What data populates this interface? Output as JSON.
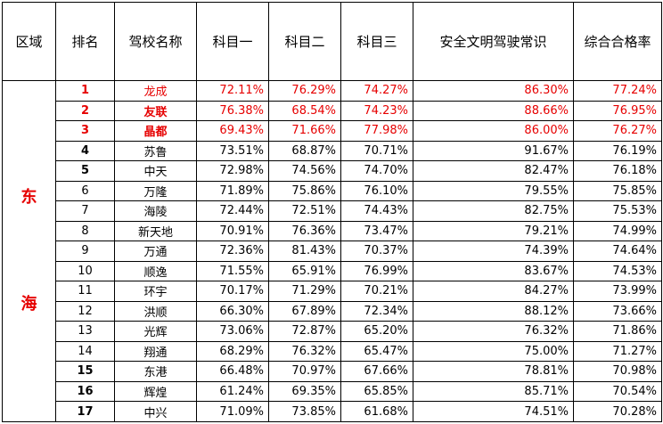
{
  "headers": [
    "区域",
    "排名",
    "驾校名称",
    "科目一",
    "科目二",
    "科目三",
    "安全文明驾驶常识",
    "综合合格率"
  ],
  "region": {
    "chars": [
      "东",
      "海"
    ]
  },
  "rows": [
    {
      "rank": "1",
      "name": "龙成",
      "k1": "72.11%",
      "k2": "76.29%",
      "k3": "74.27%",
      "safe": "86.30%",
      "total": "77.24%",
      "highlight": true,
      "rank_bold": true,
      "name_bold": false
    },
    {
      "rank": "2",
      "name": "友联",
      "k1": "76.38%",
      "k2": "68.54%",
      "k3": "74.23%",
      "safe": "88.66%",
      "total": "76.95%",
      "highlight": true,
      "rank_bold": true,
      "name_bold": true
    },
    {
      "rank": "3",
      "name": "晶都",
      "k1": "69.43%",
      "k2": "71.66%",
      "k3": "77.98%",
      "safe": "86.00%",
      "total": "76.27%",
      "highlight": true,
      "rank_bold": true,
      "name_bold": true
    },
    {
      "rank": "4",
      "name": "苏鲁",
      "k1": "73.51%",
      "k2": "68.87%",
      "k3": "70.71%",
      "safe": "91.67%",
      "total": "76.19%",
      "highlight": false,
      "rank_bold": true,
      "name_bold": false
    },
    {
      "rank": "5",
      "name": "中天",
      "k1": "72.98%",
      "k2": "74.56%",
      "k3": "74.70%",
      "safe": "82.47%",
      "total": "76.18%",
      "highlight": false,
      "rank_bold": true,
      "name_bold": false
    },
    {
      "rank": "6",
      "name": "万隆",
      "k1": "71.89%",
      "k2": "75.86%",
      "k3": "76.10%",
      "safe": "79.55%",
      "total": "75.85%",
      "highlight": false,
      "rank_bold": false,
      "name_bold": false
    },
    {
      "rank": "7",
      "name": "海陵",
      "k1": "72.44%",
      "k2": "72.51%",
      "k3": "74.43%",
      "safe": "82.75%",
      "total": "75.53%",
      "highlight": false,
      "rank_bold": false,
      "name_bold": false
    },
    {
      "rank": "8",
      "name": "新天地",
      "k1": "70.91%",
      "k2": "76.36%",
      "k3": "73.47%",
      "safe": "79.21%",
      "total": "74.99%",
      "highlight": false,
      "rank_bold": false,
      "name_bold": false
    },
    {
      "rank": "9",
      "name": "万通",
      "k1": "72.36%",
      "k2": "81.43%",
      "k3": "70.37%",
      "safe": "74.39%",
      "total": "74.64%",
      "highlight": false,
      "rank_bold": false,
      "name_bold": false
    },
    {
      "rank": "10",
      "name": "顺逸",
      "k1": "71.55%",
      "k2": "65.91%",
      "k3": "76.99%",
      "safe": "83.67%",
      "total": "74.53%",
      "highlight": false,
      "rank_bold": false,
      "name_bold": false
    },
    {
      "rank": "11",
      "name": "环宇",
      "k1": "70.17%",
      "k2": "71.29%",
      "k3": "70.21%",
      "safe": "84.27%",
      "total": "73.99%",
      "highlight": false,
      "rank_bold": false,
      "name_bold": false
    },
    {
      "rank": "12",
      "name": "洪顺",
      "k1": "66.30%",
      "k2": "67.89%",
      "k3": "72.34%",
      "safe": "88.12%",
      "total": "73.66%",
      "highlight": false,
      "rank_bold": false,
      "name_bold": false
    },
    {
      "rank": "13",
      "name": "光辉",
      "k1": "73.06%",
      "k2": "72.87%",
      "k3": "65.20%",
      "safe": "76.32%",
      "total": "71.86%",
      "highlight": false,
      "rank_bold": false,
      "name_bold": false
    },
    {
      "rank": "14",
      "name": "翔通",
      "k1": "68.29%",
      "k2": "76.32%",
      "k3": "65.47%",
      "safe": "75.00%",
      "total": "71.27%",
      "highlight": false,
      "rank_bold": false,
      "name_bold": false
    },
    {
      "rank": "15",
      "name": "东港",
      "k1": "66.48%",
      "k2": "70.97%",
      "k3": "67.66%",
      "safe": "78.81%",
      "total": "70.98%",
      "highlight": false,
      "rank_bold": true,
      "name_bold": false
    },
    {
      "rank": "16",
      "name": "辉煌",
      "k1": "61.24%",
      "k2": "69.35%",
      "k3": "65.85%",
      "safe": "85.71%",
      "total": "70.54%",
      "highlight": false,
      "rank_bold": true,
      "name_bold": false
    },
    {
      "rank": "17",
      "name": "中兴",
      "k1": "71.09%",
      "k2": "73.85%",
      "k3": "61.68%",
      "safe": "74.51%",
      "total": "70.28%",
      "highlight": false,
      "rank_bold": true,
      "name_bold": false
    }
  ],
  "colors": {
    "highlight_text": "#e60000",
    "text": "#000000",
    "border": "#000000",
    "background": "#ffffff"
  }
}
